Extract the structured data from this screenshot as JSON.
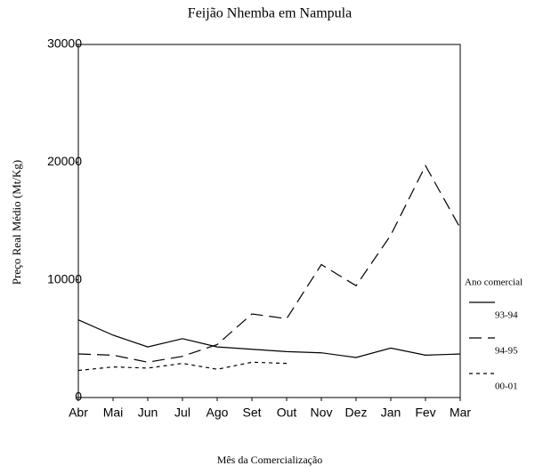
{
  "chart_data": {
    "type": "line",
    "title": "Feijão Nhemba em Nampula",
    "x_label": "Mês da Comercialização",
    "y_label": "Preço Real Médio (Mt/Kg)",
    "categories": [
      "Abr",
      "Mai",
      "Jun",
      "Jul",
      "Ago",
      "Set",
      "Out",
      "Nov",
      "Dez",
      "Jan",
      "Fev",
      "Mar"
    ],
    "series": [
      {
        "name": "93-94",
        "color": "#000000",
        "style": "solid",
        "values": [
          6600,
          5300,
          4300,
          5000,
          4300,
          4100,
          3900,
          3800,
          3400,
          4200,
          3600,
          3700
        ]
      },
      {
        "name": "94-95",
        "color": "#000000",
        "style": "long-dash",
        "values": [
          3700,
          3600,
          3000,
          3500,
          4500,
          7100,
          6700,
          11300,
          9500,
          13800,
          19700,
          14400
        ]
      },
      {
        "name": "00-01",
        "color": "#000000",
        "style": "short-dash",
        "values": [
          2300,
          2600,
          2500,
          2900,
          2400,
          3000,
          2900,
          null,
          null,
          null,
          null,
          null
        ]
      }
    ],
    "legend_title": "Ano comercial",
    "legend": "right",
    "ylim": [
      0,
      30000
    ],
    "yticks": [
      0,
      10000,
      20000,
      30000
    ],
    "grid": false
  }
}
